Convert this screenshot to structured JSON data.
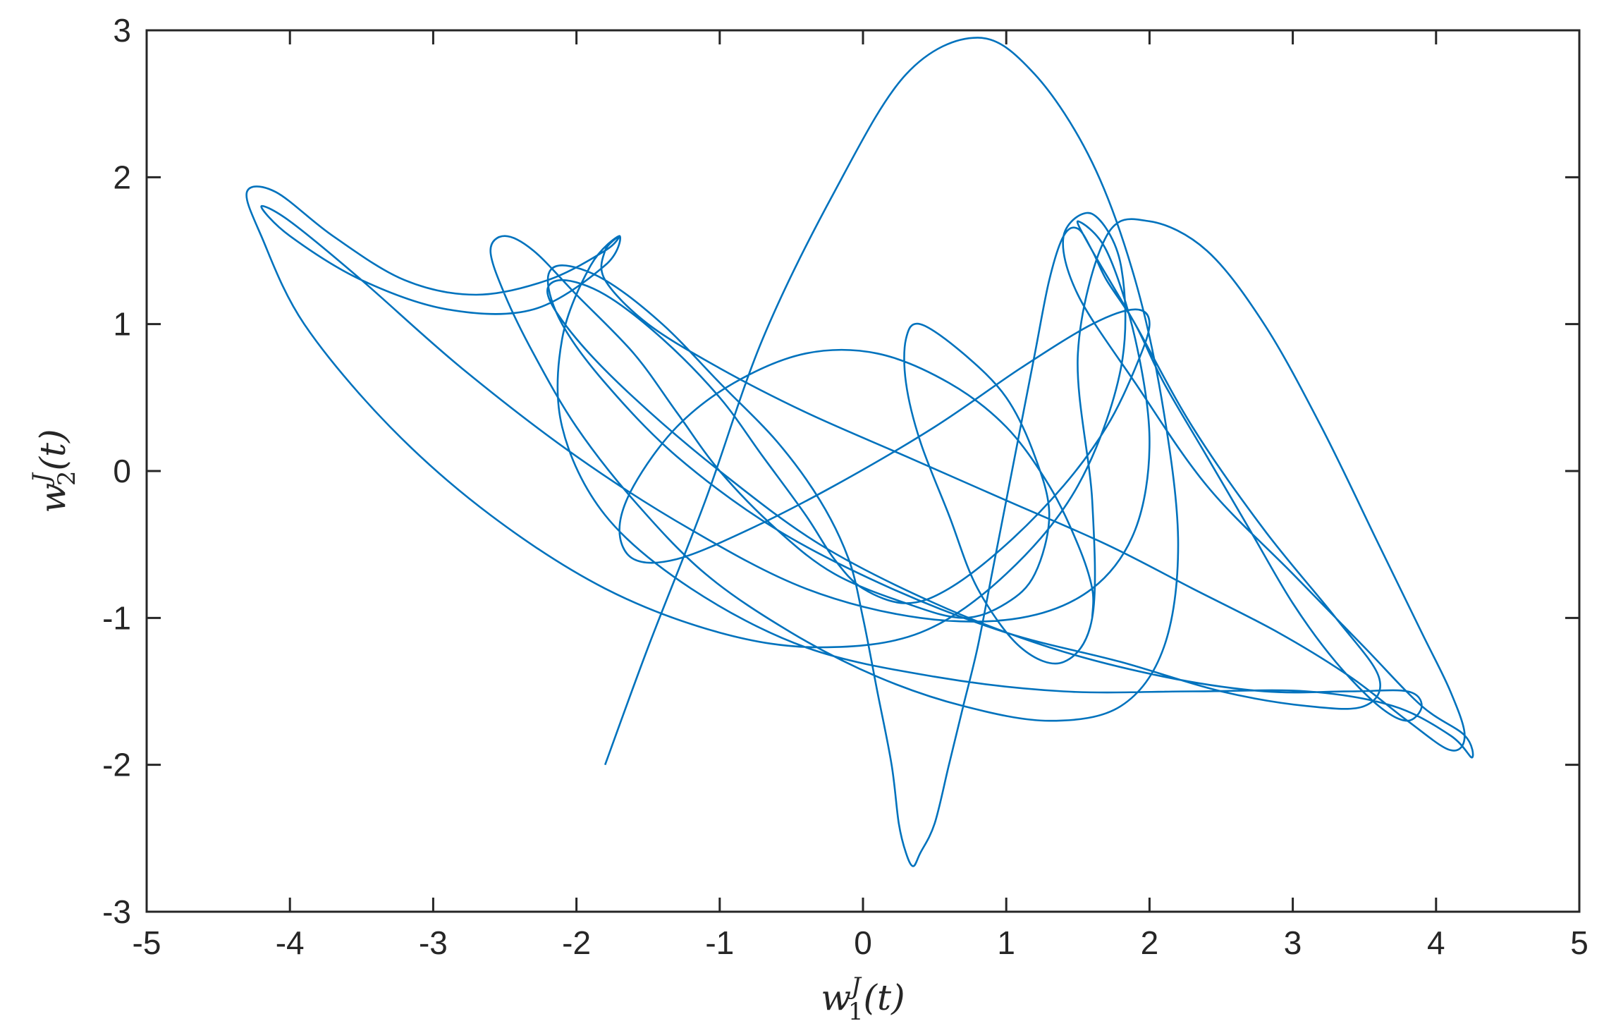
{
  "chart_data": {
    "type": "line",
    "title": "",
    "xlabel": {
      "var": "w",
      "sup": "J",
      "sub": "1",
      "arg": "(t)"
    },
    "ylabel": {
      "var": "w",
      "sup": "J",
      "sub": "2",
      "arg": "(t)"
    },
    "xlim": [
      -5,
      5
    ],
    "ylim": [
      -3,
      3
    ],
    "xticks": [
      "-5",
      "-4",
      "-3",
      "-2",
      "-1",
      "0",
      "1",
      "2",
      "3",
      "4",
      "5"
    ],
    "yticks": [
      "-3",
      "-2",
      "-1",
      "0",
      "1",
      "2",
      "3"
    ],
    "grid": false,
    "box": true,
    "line_color": "#0072BD",
    "series": [
      {
        "x": [
          -1.8,
          -1.5,
          -1.1,
          -0.7,
          -0.2,
          0.3,
          0.8,
          1.2,
          1.6,
          1.9,
          2.1,
          2.2,
          2.1,
          1.8,
          1.3,
          0.7,
          0.1,
          -0.5,
          -1.1,
          -1.6,
          -2.0,
          -2.3,
          -2.5,
          -2.6,
          -2.5,
          -2.3,
          -2.0,
          -1.6,
          -1.3,
          -1.0,
          -0.6,
          -0.2,
          0.3,
          0.7,
          1.0,
          1.2,
          1.3,
          1.2,
          1.0,
          0.7,
          0.4,
          0.3,
          0.3,
          0.4,
          0.6,
          0.8,
          1.1,
          1.4,
          1.6,
          1.6,
          1.5,
          1.7,
          2.0,
          2.4,
          2.8,
          3.2,
          3.6,
          3.9,
          4.1,
          4.2,
          4.1,
          3.8,
          3.4,
          2.9,
          2.3,
          1.7,
          1.0,
          0.3,
          -0.4,
          -1.0,
          -1.5,
          -1.8,
          -1.8,
          -1.7,
          -1.8,
          -2.2,
          -2.7,
          -3.2,
          -3.7,
          -4.1,
          -4.3,
          -4.2,
          -3.9,
          -3.3,
          -2.6,
          -1.8,
          -1.0,
          -0.3,
          0.4,
          1.0,
          1.5,
          1.8,
          1.8,
          1.6,
          1.4,
          1.5,
          1.9,
          2.4,
          3.0,
          3.5,
          3.9,
          4.2,
          4.25,
          4.1,
          3.7,
          3.1,
          2.3,
          1.4,
          0.5,
          -0.4,
          -1.2,
          -1.8,
          -2.1,
          -2.1,
          -1.9,
          -1.7,
          -1.8,
          -2.3,
          -2.9,
          -3.5,
          -4.0,
          -4.2,
          -4.0,
          -3.5,
          -2.8,
          -2.0,
          -1.2,
          -0.4,
          0.4,
          1.1,
          1.6,
          1.9,
          2.0,
          1.9,
          1.7,
          1.5,
          1.6,
          1.9,
          2.3,
          2.8,
          3.3,
          3.6,
          3.5,
          3.1,
          2.5,
          1.8,
          1.0,
          0.2,
          -0.6,
          -1.3,
          -1.8,
          -2.1,
          -2.2,
          -2.1,
          -1.8,
          -1.4,
          -1.0,
          -0.6,
          -0.3,
          -0.1,
          0.0,
          0.1,
          0.2,
          0.25,
          0.3,
          0.35,
          0.4,
          0.5,
          0.6,
          0.7,
          0.8,
          0.9,
          1.0,
          1.1,
          1.2,
          1.3,
          1.4,
          1.5,
          1.6,
          1.7,
          1.9,
          2.1,
          2.4,
          2.7,
          3.0,
          3.3,
          3.6,
          3.8,
          3.9,
          3.8,
          3.4,
          2.8,
          2.1,
          1.3,
          0.5,
          -0.3,
          -1.0,
          -1.6,
          -2.0,
          -2.2,
          -2.1,
          -1.8,
          -1.4,
          -1.0,
          -0.7,
          -0.4,
          -0.2,
          0.0,
          0.3,
          0.6,
          1.0,
          1.4,
          1.7,
          1.9,
          2.0,
          1.9,
          1.6,
          1.1,
          0.5,
          -0.2,
          -0.8,
          -1.3,
          -1.6,
          -1.7,
          -1.6,
          -1.3,
          -0.9,
          -0.4,
          0.1,
          0.6,
          1.0,
          1.3,
          1.5,
          1.6,
          1.6
        ],
        "y": [
          -2.0,
          -1.2,
          -0.2,
          0.9,
          1.9,
          2.7,
          2.95,
          2.7,
          2.1,
          1.3,
          0.4,
          -0.5,
          -1.2,
          -1.6,
          -1.7,
          -1.6,
          -1.4,
          -1.1,
          -0.7,
          -0.2,
          0.3,
          0.8,
          1.2,
          1.5,
          1.6,
          1.5,
          1.2,
          0.8,
          0.4,
          0.0,
          -0.4,
          -0.7,
          -0.9,
          -1.0,
          -0.9,
          -0.7,
          -0.3,
          0.1,
          0.5,
          0.8,
          1.0,
          0.9,
          0.6,
          0.2,
          -0.3,
          -0.8,
          -1.2,
          -1.3,
          -1.0,
          -0.2,
          0.8,
          1.6,
          1.7,
          1.5,
          1.0,
          0.3,
          -0.5,
          -1.1,
          -1.5,
          -1.8,
          -1.9,
          -1.7,
          -1.4,
          -1.1,
          -0.8,
          -0.5,
          -0.2,
          0.1,
          0.4,
          0.7,
          1.0,
          1.3,
          1.5,
          1.6,
          1.5,
          1.3,
          1.2,
          1.3,
          1.6,
          1.9,
          1.9,
          1.6,
          1.0,
          0.3,
          -0.3,
          -0.8,
          -1.1,
          -1.2,
          -1.1,
          -0.7,
          -0.1,
          0.7,
          1.4,
          1.75,
          1.6,
          1.2,
          0.6,
          -0.1,
          -0.7,
          -1.2,
          -1.6,
          -1.8,
          -1.95,
          -1.8,
          -1.6,
          -1.5,
          -1.5,
          -1.5,
          -1.4,
          -1.2,
          -0.8,
          -0.3,
          0.3,
          0.9,
          1.4,
          1.6,
          1.4,
          1.1,
          1.1,
          1.3,
          1.6,
          1.8,
          1.7,
          1.3,
          0.7,
          0.1,
          -0.4,
          -0.8,
          -1.0,
          -1.0,
          -0.8,
          -0.4,
          0.2,
          0.9,
          1.5,
          1.7,
          1.5,
          1.0,
          0.3,
          -0.4,
          -1.0,
          -1.4,
          -1.6,
          -1.6,
          -1.5,
          -1.3,
          -1.1,
          -0.8,
          -0.4,
          0.1,
          0.6,
          1.0,
          1.3,
          1.4,
          1.3,
          1.0,
          0.6,
          0.2,
          -0.2,
          -0.6,
          -1.0,
          -1.5,
          -2.0,
          -2.4,
          -2.6,
          -2.69,
          -2.6,
          -2.4,
          -2.0,
          -1.6,
          -1.2,
          -0.7,
          -0.2,
          0.3,
          0.8,
          1.3,
          1.6,
          1.65,
          1.5,
          1.3,
          1.0,
          0.6,
          0.1,
          -0.4,
          -0.9,
          -1.3,
          -1.6,
          -1.7,
          -1.6,
          -1.5,
          -1.5,
          -1.5,
          -1.4,
          -1.2,
          -0.9,
          -0.5,
          0.0,
          0.5,
          0.9,
          1.2,
          1.3,
          1.2,
          0.9,
          0.5,
          0.1,
          -0.3,
          -0.6,
          -0.8,
          -0.9,
          -0.8,
          -0.5,
          -0.1,
          0.3,
          0.7,
          1.0,
          1.1,
          1.0,
          0.7,
          0.3,
          -0.1,
          -0.4,
          -0.6,
          -0.6,
          -0.4,
          -0.1,
          0.3,
          0.6,
          0.8,
          0.8,
          0.6,
          0.3,
          -0.1,
          -0.5,
          -0.8,
          -1.0
        ]
      }
    ]
  }
}
